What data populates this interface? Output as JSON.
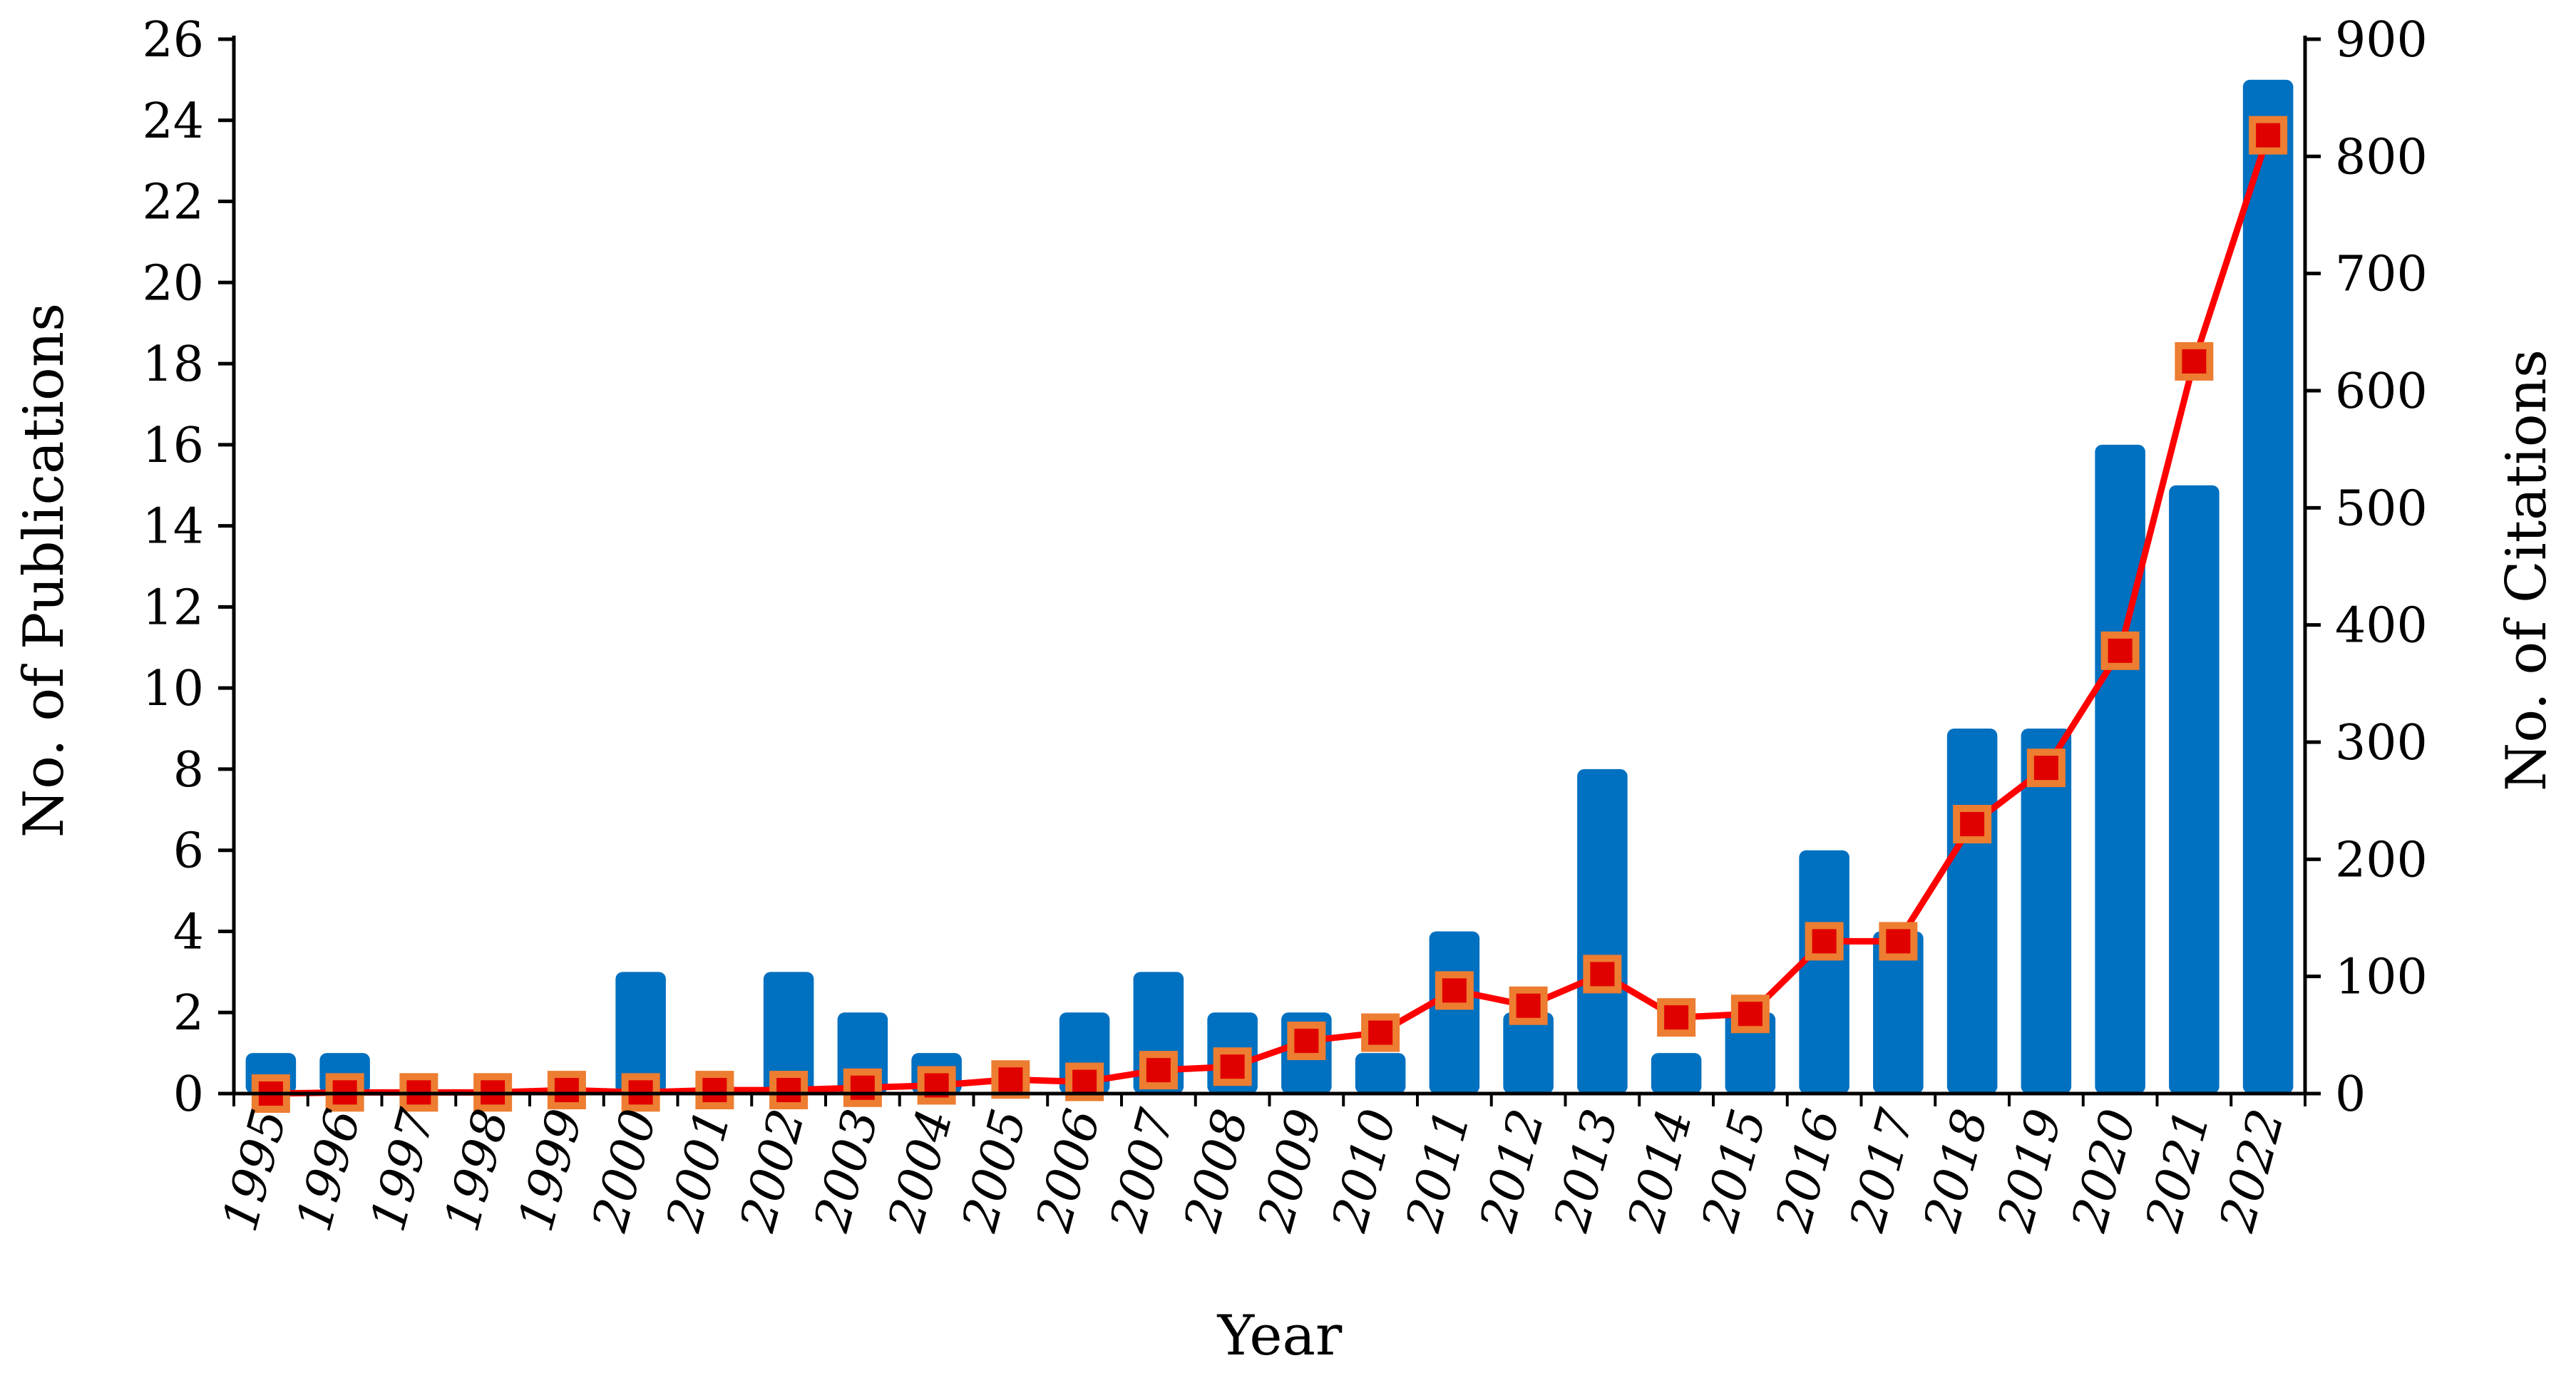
{
  "chart_data": {
    "type": "bar+line",
    "xlabel": "Year",
    "ylabel_left": "No. of Publications",
    "ylabel_right": "No. of Citations",
    "categories": [
      "1995",
      "1996",
      "1997",
      "1998",
      "1999",
      "2000",
      "2001",
      "2002",
      "2003",
      "2004",
      "2005",
      "2006",
      "2007",
      "2008",
      "2009",
      "2010",
      "2011",
      "2012",
      "2013",
      "2014",
      "2015",
      "2016",
      "2017",
      "2018",
      "2019",
      "2020",
      "2021",
      "2022"
    ],
    "series": [
      {
        "type": "bar",
        "axis": "left",
        "color": "#0070C0",
        "values": [
          1,
          1,
          0,
          0,
          0,
          3,
          0,
          3,
          2,
          1,
          0,
          2,
          3,
          2,
          2,
          1,
          4,
          2,
          8,
          1,
          2,
          6,
          4,
          9,
          9,
          16,
          15,
          25
        ]
      },
      {
        "type": "line",
        "axis": "right",
        "color": "#FF0000",
        "marker": "square",
        "marker_fill": "#E00000",
        "marker_edge": "#ED7D31",
        "values": [
          0,
          1,
          1,
          1,
          3,
          1,
          3,
          3,
          5,
          7,
          12,
          10,
          20,
          23,
          45,
          52,
          88,
          75,
          102,
          65,
          68,
          130,
          130,
          230,
          278,
          378,
          625,
          818
        ]
      }
    ],
    "ylim_left": [
      0,
      26
    ],
    "yticks_left": [
      "0",
      "2",
      "4",
      "6",
      "8",
      "10",
      "12",
      "14",
      "16",
      "18",
      "20",
      "22",
      "24",
      "26"
    ],
    "ylim_right": [
      0,
      900
    ],
    "yticks_right": [
      "0",
      "100",
      "200",
      "300",
      "400",
      "500",
      "600",
      "700",
      "800",
      "900"
    ],
    "grid": false,
    "legend": "none"
  }
}
